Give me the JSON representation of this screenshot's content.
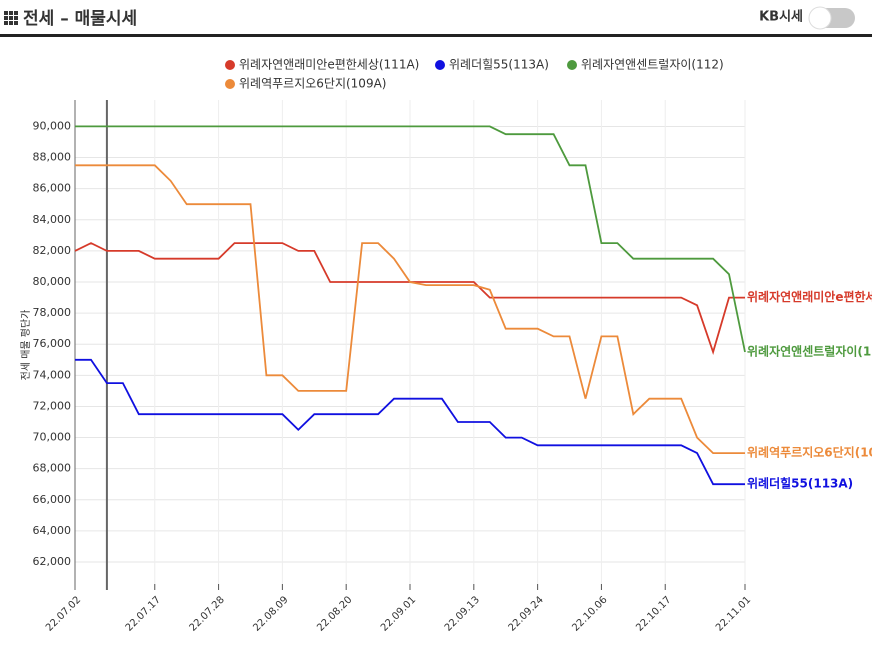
{
  "header": {
    "title": "전세 – 매물시세",
    "toggle_label": "KB시세"
  },
  "chart_data": {
    "type": "line",
    "y_label": "전세 매물 평단가",
    "categories": [
      "22.07.02",
      null,
      null,
      null,
      null,
      "22.07.17",
      null,
      null,
      null,
      "22.07.28",
      null,
      null,
      null,
      "22.08.09",
      null,
      null,
      null,
      "22.08.20",
      null,
      null,
      null,
      "22.09.01",
      null,
      null,
      null,
      "22.09.13",
      null,
      null,
      null,
      "22.09.24",
      null,
      null,
      null,
      "22.10.06",
      null,
      null,
      null,
      "22.10.17",
      null,
      null,
      null,
      null,
      "22.11.01"
    ],
    "ylim": [
      60200,
      91700
    ],
    "yticks": [
      {
        "value": 62000,
        "label": "62,000"
      },
      {
        "value": 64000,
        "label": "64,000"
      },
      {
        "value": 66000,
        "label": "66,000"
      },
      {
        "value": 68000,
        "label": "68,000"
      },
      {
        "value": 70000,
        "label": "70,000"
      },
      {
        "value": 72000,
        "label": "72,000"
      },
      {
        "value": 74000,
        "label": "74,000"
      },
      {
        "value": 76000,
        "label": "76,000"
      },
      {
        "value": 78000,
        "label": "78,000"
      },
      {
        "value": 80000,
        "label": "80,000"
      },
      {
        "value": 82000,
        "label": "82,000"
      },
      {
        "value": 84000,
        "label": "84,000"
      },
      {
        "value": 86000,
        "label": "86,000"
      },
      {
        "value": 88000,
        "label": "88,000"
      },
      {
        "value": 90000,
        "label": "90,000"
      }
    ],
    "grid": true,
    "series": [
      {
        "name": "위례자연앤래미안e편한세상(111A)",
        "color": "#d63a2a",
        "values": [
          82000,
          82500,
          82000,
          82000,
          82000,
          81500,
          81500,
          81500,
          81500,
          81500,
          82500,
          82500,
          82500,
          82500,
          82000,
          82000,
          80000,
          80000,
          80000,
          80000,
          80000,
          80000,
          80000,
          80000,
          80000,
          80000,
          79000,
          79000,
          79000,
          79000,
          79000,
          79000,
          79000,
          79000,
          79000,
          79000,
          79000,
          79000,
          79000,
          78500,
          75500,
          79000,
          79000
        ]
      },
      {
        "name": "위례더힐55(113A)",
        "color": "#1010e0",
        "values": [
          75000,
          75000,
          73500,
          73500,
          71500,
          71500,
          71500,
          71500,
          71500,
          71500,
          71500,
          71500,
          71500,
          71500,
          70500,
          71500,
          71500,
          71500,
          71500,
          71500,
          72500,
          72500,
          72500,
          72500,
          71000,
          71000,
          71000,
          70000,
          70000,
          69500,
          69500,
          69500,
          69500,
          69500,
          69500,
          69500,
          69500,
          69500,
          69500,
          69000,
          67000,
          67000,
          67000
        ]
      },
      {
        "name": "위례자연앤센트럴자이(112)",
        "color": "#4e9a3e",
        "values": [
          90000,
          90000,
          90000,
          90000,
          90000,
          90000,
          90000,
          90000,
          90000,
          90000,
          90000,
          90000,
          90000,
          90000,
          90000,
          90000,
          90000,
          90000,
          90000,
          90000,
          90000,
          90000,
          90000,
          90000,
          90000,
          90000,
          90000,
          89500,
          89500,
          89500,
          89500,
          87500,
          87500,
          82500,
          82500,
          81500,
          81500,
          81500,
          81500,
          81500,
          81500,
          80500,
          75500
        ]
      },
      {
        "name": "위례역푸르지오6단지(109A)",
        "color": "#ec8a3a",
        "values": [
          87500,
          87500,
          87500,
          87500,
          87500,
          87500,
          86500,
          85000,
          85000,
          85000,
          85000,
          85000,
          74000,
          74000,
          73000,
          73000,
          73000,
          73000,
          82500,
          82500,
          81500,
          80000,
          79800,
          79800,
          79800,
          79800,
          79500,
          77000,
          77000,
          77000,
          76500,
          76500,
          72500,
          76500,
          76500,
          71500,
          72500,
          72500,
          72500,
          70000,
          69000,
          69000,
          69000
        ]
      }
    ]
  }
}
